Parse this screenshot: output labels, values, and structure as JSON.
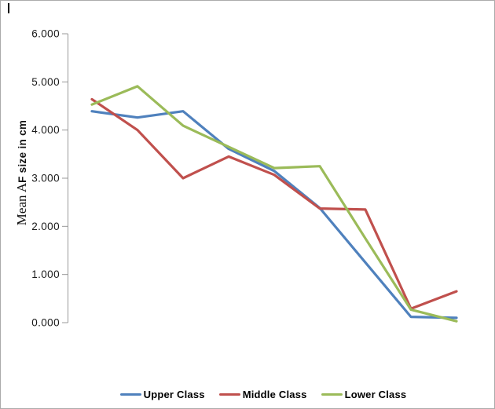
{
  "window": {
    "background": "#ffffff",
    "frame_border_color": "#ababab",
    "text_cursor_artifact": true
  },
  "chart_data": {
    "type": "line",
    "title": "",
    "xlabel": "",
    "ylabel": "Mean AF size in cm",
    "ylabel_segments": [
      {
        "text": "Mean A",
        "font": "serif",
        "bold": false
      },
      {
        "text": "F size in cm",
        "font": "sans",
        "bold": true
      }
    ],
    "ylim": [
      0,
      6
    ],
    "ytick_interval": 1.0,
    "yticks": [
      "0.000",
      "1.000",
      "2.000",
      "3.000",
      "4.000",
      "5.000",
      "6.000"
    ],
    "x": [
      1,
      2,
      3,
      4,
      5,
      6,
      7,
      8,
      9
    ],
    "x_tick_labels_visible": false,
    "grid": false,
    "axis_color": "#9a9a9a",
    "tick_label_color": "#1a1a1a",
    "series": [
      {
        "name": "Upper Class",
        "color": "#4F81BD",
        "values": [
          4.39,
          4.26,
          4.39,
          3.61,
          3.15,
          2.38,
          1.25,
          0.12,
          0.1
        ]
      },
      {
        "name": "Middle Class",
        "color": "#C0504D",
        "values": [
          4.64,
          4.0,
          3.0,
          3.45,
          3.07,
          2.37,
          2.35,
          0.29,
          0.65
        ]
      },
      {
        "name": "Lower Class",
        "color": "#9BBB59",
        "values": [
          4.53,
          4.91,
          4.09,
          3.65,
          3.21,
          3.25,
          1.75,
          0.27,
          0.03
        ]
      }
    ],
    "legend_position": "bottom",
    "legend_labels": [
      "Upper Class",
      "Middle Class",
      "Lower Class"
    ]
  }
}
